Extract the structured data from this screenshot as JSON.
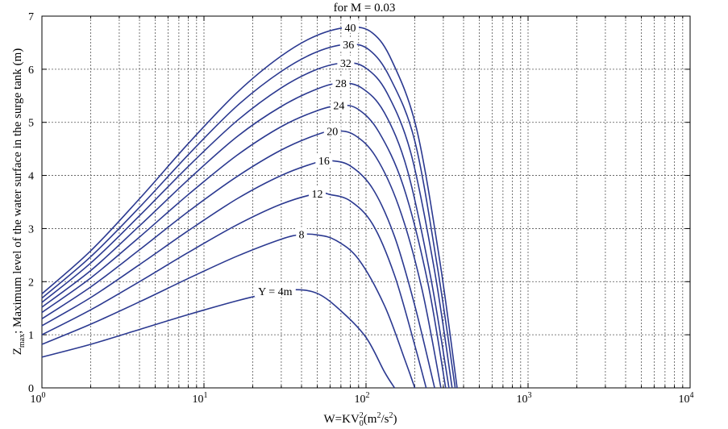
{
  "chart_data": {
    "type": "line",
    "title": "for M = 0.03",
    "ylabel_main": "Z",
    "ylabel_sub": "max",
    "ylabel_rest": "; Maximum level of the water surface in the surge tank (m)",
    "xlabel_pre": "W=KV",
    "xlabel_sup1": "2",
    "xlabel_sub1": "0",
    "xlabel_mid": "(m",
    "xlabel_sup2": "2",
    "xlabel_mid2": "/s",
    "xlabel_sup3": "2",
    "xlabel_post": ")",
    "x_scale": "log",
    "xlim": [
      1,
      10000
    ],
    "ylim": [
      0,
      7
    ],
    "grid": true,
    "x_ticks": [
      {
        "value": 1,
        "base": "10",
        "exp": "0"
      },
      {
        "value": 10,
        "base": "10",
        "exp": "1"
      },
      {
        "value": 100,
        "base": "10",
        "exp": "2"
      },
      {
        "value": 1000,
        "base": "10",
        "exp": "3"
      },
      {
        "value": 10000,
        "base": "10",
        "exp": "4"
      }
    ],
    "y_ticks": [
      "0",
      "1",
      "2",
      "3",
      "4",
      "5",
      "6",
      "7"
    ],
    "line_color": "#2b3990",
    "series": [
      {
        "name": "Y = 4m",
        "label_x": 27.5,
        "label_y": 1.82,
        "x": [
          1,
          2,
          4,
          8,
          16,
          25,
          35,
          50,
          70,
          100,
          130,
          150
        ],
        "y": [
          0.58,
          0.82,
          1.1,
          1.38,
          1.64,
          1.78,
          1.85,
          1.78,
          1.45,
          0.95,
          0.3,
          0
        ]
      },
      {
        "name": "8",
        "label_x": 40,
        "label_y": 2.89,
        "x": [
          1,
          2,
          4,
          8,
          16,
          30,
          40,
          50,
          65,
          90,
          130,
          175,
          200
        ],
        "y": [
          0.82,
          1.2,
          1.62,
          2.06,
          2.48,
          2.8,
          2.89,
          2.88,
          2.78,
          2.42,
          1.55,
          0.5,
          0
        ]
      },
      {
        "name": "12",
        "label_x": 50,
        "label_y": 3.66,
        "x": [
          1,
          2,
          4,
          8,
          16,
          30,
          50,
          60,
          80,
          110,
          150,
          200,
          235
        ],
        "y": [
          1.0,
          1.47,
          2.0,
          2.55,
          3.07,
          3.46,
          3.66,
          3.64,
          3.52,
          3.08,
          2.12,
          0.8,
          0
        ]
      },
      {
        "name": "16",
        "label_x": 55,
        "label_y": 4.28,
        "x": [
          1,
          2,
          4,
          8,
          16,
          30,
          50,
          60,
          80,
          110,
          150,
          200,
          265
        ],
        "y": [
          1.17,
          1.7,
          2.32,
          2.96,
          3.56,
          4.0,
          4.25,
          4.28,
          4.18,
          3.75,
          2.85,
          1.55,
          0
        ]
      },
      {
        "name": "20",
        "label_x": 62,
        "label_y": 4.84,
        "x": [
          1,
          2,
          4,
          8,
          16,
          30,
          50,
          65,
          85,
          115,
          160,
          220,
          290
        ],
        "y": [
          1.3,
          1.9,
          2.6,
          3.32,
          3.98,
          4.48,
          4.77,
          4.84,
          4.76,
          4.35,
          3.4,
          1.9,
          0
        ]
      },
      {
        "name": "24",
        "label_x": 68,
        "label_y": 5.32,
        "x": [
          1,
          2,
          4,
          8,
          16,
          30,
          50,
          70,
          90,
          120,
          170,
          240,
          310
        ],
        "y": [
          1.42,
          2.07,
          2.84,
          3.64,
          4.38,
          4.92,
          5.22,
          5.32,
          5.24,
          4.82,
          3.8,
          2.0,
          0
        ]
      },
      {
        "name": "28",
        "label_x": 70,
        "label_y": 5.74,
        "x": [
          1,
          2,
          4,
          8,
          16,
          30,
          50,
          70,
          95,
          130,
          180,
          250,
          325
        ],
        "y": [
          1.52,
          2.21,
          3.05,
          3.92,
          4.73,
          5.3,
          5.63,
          5.74,
          5.64,
          5.18,
          4.1,
          2.1,
          0
        ]
      },
      {
        "name": "32",
        "label_x": 75,
        "label_y": 6.12,
        "x": [
          1,
          2,
          4,
          8,
          16,
          30,
          50,
          75,
          100,
          135,
          190,
          265,
          340
        ],
        "y": [
          1.61,
          2.35,
          3.24,
          4.17,
          5.03,
          5.65,
          6.0,
          6.12,
          6.02,
          5.55,
          4.4,
          2.2,
          0
        ]
      },
      {
        "name": "36",
        "label_x": 78,
        "label_y": 6.47,
        "x": [
          1,
          2,
          4,
          8,
          16,
          30,
          50,
          78,
          105,
          140,
          200,
          275,
          355
        ],
        "y": [
          1.69,
          2.47,
          3.4,
          4.39,
          5.31,
          5.96,
          6.33,
          6.47,
          6.36,
          5.85,
          4.65,
          2.3,
          0
        ]
      },
      {
        "name": "40",
        "label_x": 80,
        "label_y": 6.79,
        "x": [
          1,
          2,
          4,
          8,
          16,
          30,
          50,
          80,
          110,
          145,
          205,
          285,
          365
        ],
        "y": [
          1.77,
          2.58,
          3.56,
          4.6,
          5.56,
          6.25,
          6.64,
          6.79,
          6.68,
          6.15,
          4.88,
          2.4,
          0
        ]
      }
    ]
  }
}
